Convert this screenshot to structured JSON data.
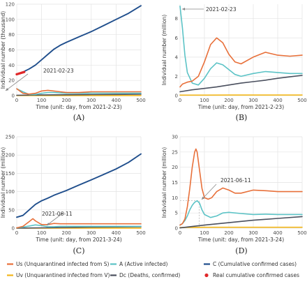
{
  "colors": {
    "Us": "#E8703A",
    "A": "#5CC3C6",
    "C": "#1F4E8C",
    "Uv": "#F2B619",
    "Dc": "#4A4F5E",
    "Real": "#E0282A",
    "grid": "#E3E3E3",
    "annotation": "#888888",
    "guide": "#AAAAAA"
  },
  "legend": [
    {
      "key": "Us",
      "label": "Us (Unquarantined infected from S)",
      "marker": "line"
    },
    {
      "key": "A",
      "label": "A (Active infected)",
      "marker": "line"
    },
    {
      "key": "C",
      "label": "C (Cumulative confirmed cases)",
      "marker": "line"
    },
    {
      "key": "Uv",
      "label": "Uv (Unquarantined infected from V)",
      "marker": "line"
    },
    {
      "key": "Dc",
      "label": "Dc (Deaths, confirmed)",
      "marker": "line"
    },
    {
      "key": "Real",
      "label": "Real cumulative confirmed cases",
      "marker": "dot"
    }
  ],
  "chart_data": [
    {
      "panel": "(A)",
      "type": "line",
      "xlabel": "Time (unit: day, from 2021-2-23)",
      "ylabel": "Individual number (thousand)",
      "xlim": [
        0,
        500
      ],
      "ylim": [
        0,
        120
      ],
      "xticks": [
        0,
        100,
        200,
        300,
        400,
        500
      ],
      "yticks": [
        0,
        20,
        40,
        60,
        80,
        100,
        120
      ],
      "grid": true,
      "annotation": {
        "text": "2021-02-23",
        "x": 0,
        "y": 10
      },
      "series": [
        {
          "key": "C",
          "x": [
            0,
            25,
            50,
            75,
            100,
            125,
            150,
            175,
            200,
            250,
            300,
            350,
            400,
            450,
            500
          ],
          "y": [
            28,
            31,
            35,
            40,
            47,
            54,
            61,
            66,
            70,
            77,
            84,
            92,
            100,
            108,
            118
          ]
        },
        {
          "key": "Us",
          "x": [
            0,
            25,
            50,
            75,
            100,
            125,
            150,
            175,
            200,
            250,
            300,
            350,
            400,
            450,
            500
          ],
          "y": [
            9,
            3,
            2,
            3,
            6,
            7,
            6,
            5,
            4,
            4,
            5,
            5,
            5,
            5,
            5
          ]
        },
        {
          "key": "A",
          "x": [
            0,
            25,
            50,
            75,
            100,
            125,
            150,
            175,
            200,
            250,
            300,
            350,
            400,
            450,
            500
          ],
          "y": [
            9,
            5,
            1.5,
            1.5,
            3,
            4,
            4,
            3.5,
            3,
            3,
            3.2,
            3.2,
            3.2,
            3.2,
            3.2
          ]
        },
        {
          "key": "Dc",
          "x": [
            0,
            100,
            200,
            300,
            400,
            500
          ],
          "y": [
            0.5,
            0.8,
            1.1,
            1.4,
            1.6,
            1.8
          ]
        },
        {
          "key": "Uv",
          "x": [
            0,
            100,
            200,
            300,
            400,
            500
          ],
          "y": [
            0.1,
            0.1,
            0.1,
            0.1,
            0.1,
            0.1
          ]
        },
        {
          "key": "Real",
          "x": [
            0,
            5,
            10,
            15,
            20,
            25,
            30
          ],
          "y": [
            28,
            28.5,
            29,
            29.5,
            30,
            30.5,
            31
          ]
        }
      ]
    },
    {
      "panel": "(B)",
      "type": "line",
      "xlabel": "Time (unit: day, from 2021-2-23)",
      "ylabel": "Individual number (million)",
      "xlim": [
        0,
        500
      ],
      "ylim": [
        0,
        9.5
      ],
      "xticks": [
        0,
        100,
        200,
        300,
        400,
        500
      ],
      "yticks": [
        0,
        2,
        4,
        6,
        8
      ],
      "grid": true,
      "annotation": {
        "text": "2021-02-23",
        "x": 0,
        "y": 9.2
      },
      "series": [
        {
          "key": "A",
          "x": [
            0,
            10,
            20,
            30,
            50,
            75,
            100,
            125,
            150,
            175,
            200,
            225,
            250,
            300,
            350,
            400,
            450,
            500
          ],
          "y": [
            9.3,
            7,
            4.2,
            2.4,
            1.3,
            1.1,
            1.8,
            2.8,
            3.4,
            3.2,
            2.7,
            2.2,
            2.0,
            2.3,
            2.5,
            2.4,
            2.3,
            2.3
          ]
        },
        {
          "key": "Us",
          "x": [
            0,
            10,
            20,
            30,
            50,
            75,
            100,
            125,
            150,
            175,
            200,
            225,
            250,
            300,
            350,
            400,
            450,
            500
          ],
          "y": [
            0.9,
            1.2,
            1.3,
            1.4,
            1.5,
            2.0,
            3.5,
            5.3,
            6.0,
            5.5,
            4.3,
            3.5,
            3.3,
            4.0,
            4.5,
            4.2,
            4.1,
            4.2
          ]
        },
        {
          "key": "Dc",
          "x": [
            0,
            50,
            100,
            150,
            200,
            250,
            300,
            350,
            400,
            450,
            500
          ],
          "y": [
            0.4,
            0.6,
            0.75,
            0.9,
            1.1,
            1.3,
            1.45,
            1.6,
            1.8,
            1.95,
            2.1
          ]
        },
        {
          "key": "Uv",
          "x": [
            0,
            100,
            200,
            300,
            400,
            500
          ],
          "y": [
            0.05,
            0.05,
            0.06,
            0.06,
            0.06,
            0.06
          ]
        }
      ]
    },
    {
      "panel": "(C)",
      "type": "line",
      "xlabel": "Time (unit: day, from 2021-3-24)",
      "ylabel": "Individual number (million)",
      "xlim": [
        0,
        500
      ],
      "ylim": [
        0,
        250
      ],
      "xticks": [
        0,
        100,
        200,
        300,
        400,
        500
      ],
      "yticks": [
        0,
        50,
        100,
        150,
        200,
        250
      ],
      "grid": true,
      "annotation": {
        "text": "2021-06-11",
        "x": 79,
        "y": 10
      },
      "series": [
        {
          "key": "C",
          "x": [
            0,
            25,
            50,
            75,
            100,
            125,
            150,
            200,
            250,
            300,
            350,
            400,
            450,
            500
          ],
          "y": [
            30,
            35,
            50,
            65,
            75,
            82,
            90,
            103,
            118,
            132,
            147,
            162,
            180,
            203
          ]
        },
        {
          "key": "Us",
          "x": [
            0,
            25,
            50,
            65,
            75,
            100,
            125,
            150,
            175,
            200,
            250,
            300,
            350,
            400,
            450,
            500
          ],
          "y": [
            1,
            5,
            18,
            26,
            20,
            10,
            10,
            13,
            12,
            12,
            12,
            12,
            12,
            12,
            12,
            12
          ]
        },
        {
          "key": "A",
          "x": [
            0,
            25,
            50,
            75,
            100,
            125,
            150,
            175,
            200,
            250,
            300,
            350,
            400,
            450,
            500
          ],
          "y": [
            1,
            3,
            6,
            9,
            7,
            4,
            4,
            5,
            5,
            5,
            5,
            5,
            5,
            5,
            5
          ]
        },
        {
          "key": "Dc",
          "x": [
            0,
            100,
            200,
            300,
            400,
            500
          ],
          "y": [
            0.1,
            1,
            2,
            3,
            3.5,
            4
          ]
        },
        {
          "key": "Uv",
          "x": [
            0,
            100,
            200,
            300,
            400,
            500
          ],
          "y": [
            0.1,
            0.2,
            0.2,
            0.2,
            0.2,
            0.2
          ]
        }
      ]
    },
    {
      "panel": "(D)",
      "type": "line",
      "xlabel": "Time (unit: day, from 2021-3-24)",
      "ylabel": "Individual number (million)",
      "xlim": [
        0,
        500
      ],
      "ylim": [
        0,
        30
      ],
      "xticks": [
        0,
        100,
        200,
        300,
        400,
        500
      ],
      "yticks": [
        0,
        5,
        10,
        15,
        20,
        25,
        30
      ],
      "grid": true,
      "annotation": {
        "text": "2021-06-11",
        "x": 79,
        "y": 9
      },
      "series": [
        {
          "key": "Us",
          "x": [
            0,
            10,
            20,
            30,
            40,
            50,
            60,
            65,
            70,
            80,
            90,
            100,
            115,
            130,
            150,
            175,
            200,
            225,
            250,
            300,
            350,
            400,
            450,
            500
          ],
          "y": [
            1,
            1.5,
            3,
            7,
            13,
            20,
            25,
            26,
            25,
            19,
            13,
            10,
            9.5,
            10,
            12,
            13.2,
            12.5,
            11.5,
            11.5,
            12.5,
            12.3,
            12,
            12,
            12
          ]
        },
        {
          "key": "A",
          "x": [
            0,
            10,
            20,
            30,
            40,
            50,
            60,
            70,
            80,
            90,
            100,
            125,
            150,
            175,
            200,
            250,
            300,
            350,
            400,
            450,
            500
          ],
          "y": [
            1,
            1.5,
            2.5,
            4,
            6,
            7.5,
            8.5,
            9,
            8.2,
            6,
            4.5,
            3.5,
            4,
            5,
            5.2,
            4.8,
            4.5,
            4.6,
            4.5,
            4.5,
            4.5
          ]
        },
        {
          "key": "Dc",
          "x": [
            0,
            100,
            200,
            300,
            400,
            500
          ],
          "y": [
            0.1,
            1,
            1.8,
            2.6,
            3.2,
            3.8
          ]
        },
        {
          "key": "Uv",
          "x": [
            0,
            100,
            200,
            300,
            400,
            500
          ],
          "y": [
            0.2,
            0.3,
            0.3,
            0.3,
            0.3,
            0.3
          ]
        }
      ]
    }
  ]
}
